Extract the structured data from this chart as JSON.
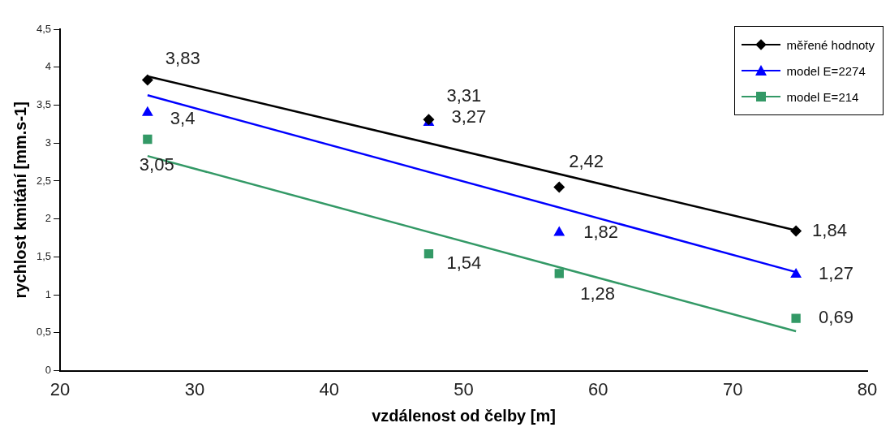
{
  "chart_data": {
    "type": "scatter",
    "xlabel": "vzdálenost od čelby [m]",
    "ylabel": "rychlost kmitání [mm.s-1]",
    "xlim": [
      20,
      80
    ],
    "xticks": [
      20,
      30,
      40,
      50,
      60,
      70,
      80
    ],
    "ylim": [
      0,
      4.5
    ],
    "yticks": [
      0,
      {
        "value": 0.5,
        "label": "0,5"
      },
      1,
      {
        "value": 1.5,
        "label": "1,5"
      },
      2,
      {
        "value": 2.5,
        "label": "2,5"
      },
      3,
      {
        "value": 3.5,
        "label": "3,5"
      },
      4,
      {
        "value": 4.5,
        "label": "4,5"
      }
    ],
    "grid": false,
    "legend": "top right",
    "series": [
      {
        "name": "měřené hodnoty",
        "marker": "diamond",
        "color": "#000000",
        "x": [
          26.5,
          47.4,
          57.1,
          74.7
        ],
        "values": [
          3.83,
          3.31,
          2.42,
          1.84
        ],
        "value_labels": [
          "3,83",
          "3,31",
          "2,42",
          "1,84"
        ]
      },
      {
        "name": "model E=2274",
        "marker": "triangle",
        "color": "#0000ff",
        "x": [
          26.5,
          47.4,
          57.1,
          74.7
        ],
        "values": [
          3.4,
          3.27,
          1.82,
          1.27
        ],
        "value_labels": [
          "3,4",
          "3,27",
          "1,82",
          "1,27"
        ]
      },
      {
        "name": "model E=214",
        "marker": "square",
        "color": "#339966",
        "x": [
          26.5,
          47.4,
          57.1,
          74.7
        ],
        "values": [
          3.05,
          1.54,
          1.28,
          0.69
        ],
        "value_labels": [
          "3,05",
          "1,54",
          "1,28",
          "0,69"
        ]
      },
      {
        "type": "line",
        "marker": "none",
        "color": "#000000",
        "x": [
          26.5,
          74.7
        ],
        "values": [
          3.88,
          1.85
        ]
      },
      {
        "type": "line",
        "marker": "none",
        "color": "#0000ff",
        "x": [
          26.5,
          74.7
        ],
        "values": [
          3.63,
          1.3
        ]
      },
      {
        "type": "line",
        "marker": "none",
        "color": "#339966",
        "x": [
          26.5,
          74.7
        ],
        "values": [
          2.83,
          0.52
        ]
      }
    ]
  }
}
